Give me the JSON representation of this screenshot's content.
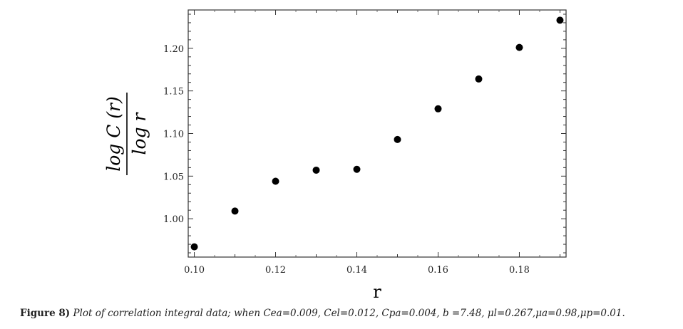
{
  "chart_data": {
    "type": "scatter",
    "x": [
      0.1,
      0.11,
      0.12,
      0.13,
      0.14,
      0.15,
      0.16,
      0.17,
      0.18,
      0.19
    ],
    "y": [
      0.967,
      1.009,
      1.044,
      1.057,
      1.058,
      1.093,
      1.129,
      1.164,
      1.201,
      1.233
    ],
    "xlabel": "r",
    "ylabel": {
      "numerator": "log C (r)",
      "denominator": "log r"
    },
    "xlim": [
      0.0985,
      0.1915
    ],
    "ylim": [
      0.955,
      1.245
    ],
    "xticks": [
      "0.10",
      "0.12",
      "0.14",
      "0.16",
      "0.18"
    ],
    "yticks": [
      "1.00",
      "1.05",
      "1.10",
      "1.15",
      "1.20"
    ],
    "grid": false,
    "marker_color": "#000000"
  },
  "caption": {
    "label": "Figure 8)",
    "text": "Plot of correlation integral data; when Cea=0.009, Cel=0.012, Cpa=0.004, b =7.48, μl=0.267,μa=0.98,μp=0.01."
  }
}
